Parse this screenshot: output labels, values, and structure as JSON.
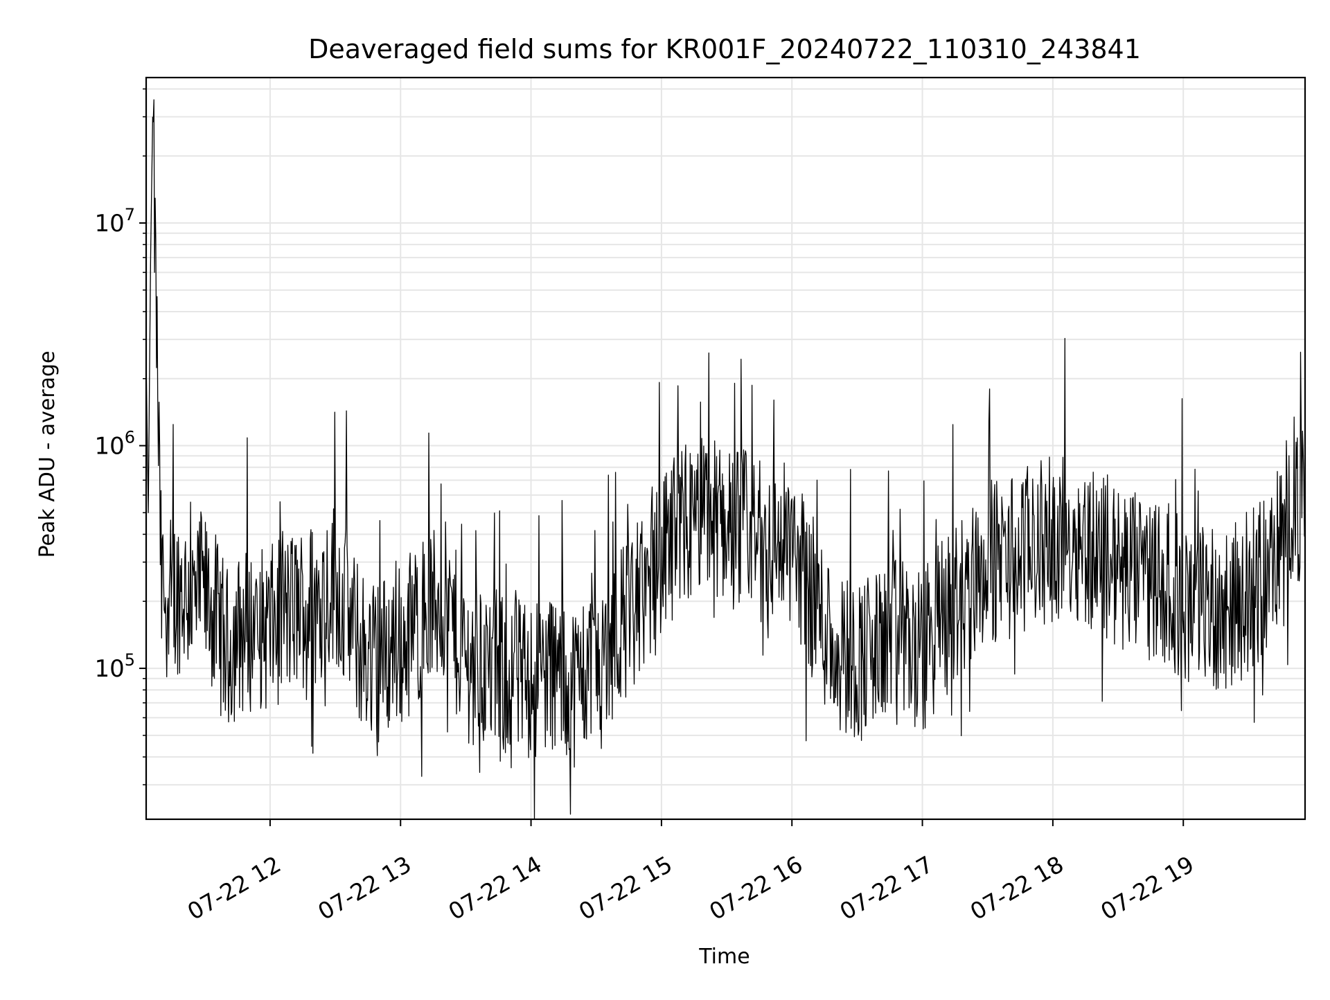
{
  "colors": {
    "line": "#000000",
    "grid": "#e6e6e6",
    "axes": "#000000",
    "background": "#ffffff"
  },
  "chart_data": {
    "type": "line",
    "title": "Deaveraged field sums for KR001F_20240722_110310_243841",
    "xlabel": "Time",
    "ylabel": "Peak ADU - average",
    "yscale": "log",
    "grid": true,
    "grid_minor": true,
    "legend": "none",
    "xlim": [
      "2024-07-22 11:03",
      "2024-07-22 19:56"
    ],
    "ylim": [
      21000,
      45000000
    ],
    "x_ticks": [
      "2024-07-22 12:00",
      "2024-07-22 13:00",
      "2024-07-22 14:00",
      "2024-07-22 15:00",
      "2024-07-22 16:00",
      "2024-07-22 17:00",
      "2024-07-22 18:00",
      "2024-07-22 19:00"
    ],
    "x_tick_labels": [
      "07-22 12",
      "07-22 13",
      "07-22 14",
      "07-22 15",
      "07-22 16",
      "07-22 17",
      "07-22 18",
      "07-22 19"
    ],
    "y_ticks": [
      100000,
      1000000,
      10000000
    ],
    "y_tick_labels": [
      {
        "base": "10",
        "exp": "5"
      },
      {
        "base": "10",
        "exp": "6"
      },
      {
        "base": "10",
        "exp": "7"
      }
    ],
    "series": [
      {
        "x": [
          "2024-07-22 11:03",
          "2024-07-22 11:04",
          "2024-07-22 11:05",
          "2024-07-22 11:06",
          "2024-07-22 11:10",
          "2024-07-22 11:15",
          "2024-07-22 11:20",
          "2024-07-22 11:25",
          "2024-07-22 11:30",
          "2024-07-22 11:35",
          "2024-07-22 11:40",
          "2024-07-22 11:45",
          "2024-07-22 11:50",
          "2024-07-22 12:00",
          "2024-07-22 12:10",
          "2024-07-22 12:20",
          "2024-07-22 12:30",
          "2024-07-22 12:40",
          "2024-07-22 12:50",
          "2024-07-22 13:00",
          "2024-07-22 13:10",
          "2024-07-22 13:20",
          "2024-07-22 13:30",
          "2024-07-22 13:40",
          "2024-07-22 13:50",
          "2024-07-22 14:00",
          "2024-07-22 14:10",
          "2024-07-22 14:20",
          "2024-07-22 14:30",
          "2024-07-22 14:40",
          "2024-07-22 14:50",
          "2024-07-22 15:00",
          "2024-07-22 15:10",
          "2024-07-22 15:20",
          "2024-07-22 15:30",
          "2024-07-22 15:40",
          "2024-07-22 15:50",
          "2024-07-22 16:00",
          "2024-07-22 16:10",
          "2024-07-22 16:20",
          "2024-07-22 16:30",
          "2024-07-22 16:40",
          "2024-07-22 16:50",
          "2024-07-22 17:00",
          "2024-07-22 17:10",
          "2024-07-22 17:20",
          "2024-07-22 17:30",
          "2024-07-22 17:40",
          "2024-07-22 17:50",
          "2024-07-22 18:00",
          "2024-07-22 18:10",
          "2024-07-22 18:20",
          "2024-07-22 18:30",
          "2024-07-22 18:40",
          "2024-07-22 18:50",
          "2024-07-22 19:00",
          "2024-07-22 19:10",
          "2024-07-22 19:20",
          "2024-07-22 19:30",
          "2024-07-22 19:40",
          "2024-07-22 19:50",
          "2024-07-22 19:56"
        ],
        "values": [
          2400000,
          500000,
          6500000,
          30000000,
          220000,
          210000,
          230000,
          190000,
          210000,
          170000,
          120000,
          140000,
          150000,
          150000,
          180000,
          200000,
          250000,
          130000,
          110000,
          130000,
          170000,
          200000,
          110000,
          100000,
          90000,
          90000,
          100000,
          85000,
          110000,
          150000,
          200000,
          300000,
          400000,
          500000,
          450000,
          400000,
          350000,
          380000,
          200000,
          120000,
          110000,
          120000,
          140000,
          110000,
          180000,
          220000,
          300000,
          320000,
          350000,
          380000,
          400000,
          330000,
          280000,
          260000,
          250000,
          200000,
          200000,
          180000,
          220000,
          280000,
          600000,
          500000
        ]
      }
    ]
  }
}
